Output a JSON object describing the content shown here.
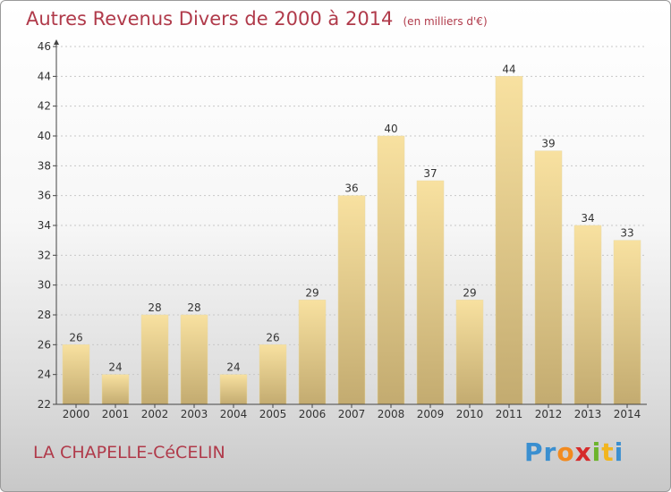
{
  "title": "Autres Revenus Divers de 2000 à 2014",
  "subtitle": "(en milliers d'€)",
  "commune": "LA CHAPELLE-CéCELIN",
  "logo": {
    "letters": [
      "P",
      "r",
      "o",
      "x",
      "i",
      "t",
      "i"
    ],
    "colors": [
      "#3a8fd0",
      "#3a8fd0",
      "#f28a1e",
      "#d62b2b",
      "#6cb42c",
      "#f2b51e",
      "#3a8fd0"
    ]
  },
  "colors": {
    "bar_light": "#f8e1a0",
    "bar_dark": "#c3ab70",
    "title": "#b03a4a",
    "axis": "#444444",
    "grid": "#c8c8c8"
  },
  "chart_data": {
    "type": "bar",
    "categories": [
      "2000",
      "2001",
      "2002",
      "2003",
      "2004",
      "2005",
      "2006",
      "2007",
      "2008",
      "2009",
      "2010",
      "2011",
      "2012",
      "2013",
      "2014"
    ],
    "values": [
      26,
      24,
      28,
      28,
      24,
      26,
      29,
      36,
      40,
      37,
      29,
      44,
      39,
      34,
      33
    ],
    "data_labels": [
      "26",
      "24",
      "28",
      "28",
      "24",
      "26",
      "29",
      "36",
      "40",
      "37",
      "29",
      "44",
      "39",
      "34",
      "33"
    ],
    "yticks": [
      "22",
      "24",
      "26",
      "28",
      "30",
      "32",
      "34",
      "36",
      "38",
      "40",
      "42",
      "44",
      "46"
    ],
    "ylim": [
      22,
      46
    ],
    "xlabel": "",
    "ylabel": "",
    "grid": "horizontal, dotted",
    "legend": "none"
  }
}
